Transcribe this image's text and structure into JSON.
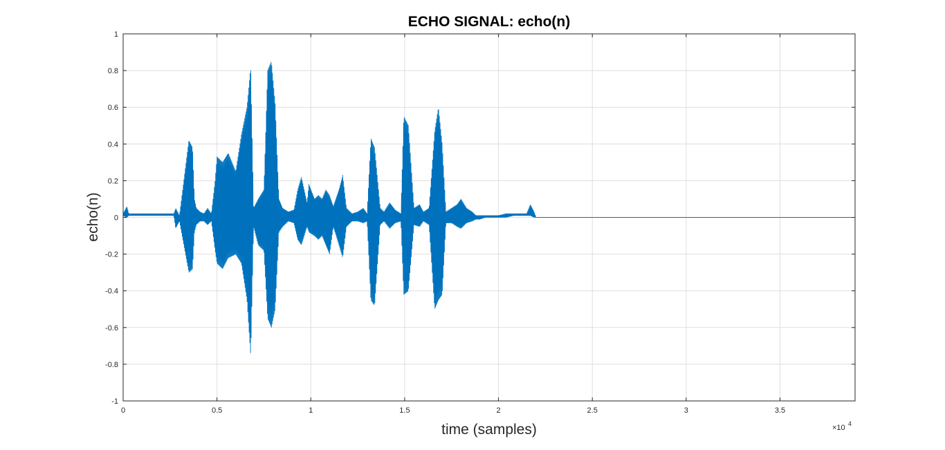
{
  "chart_data": {
    "type": "line",
    "title": "ECHO SIGNAL: echo(n)",
    "xlabel": "time (samples)",
    "ylabel": "echo(n)",
    "xlim": [
      0,
      39000
    ],
    "ylim": [
      -1,
      1
    ],
    "x_tick_values": [
      0,
      5000,
      10000,
      15000,
      20000,
      25000,
      30000,
      35000
    ],
    "x_tick_labels": [
      "0",
      "0.5",
      "1",
      "1.5",
      "2",
      "2.5",
      "3",
      "3.5"
    ],
    "x_exponent_label": "×10",
    "x_exponent_power": "4",
    "y_tick_values": [
      -1,
      -0.8,
      -0.6,
      -0.4,
      -0.2,
      0,
      0.2,
      0.4,
      0.6,
      0.8,
      1
    ],
    "y_tick_labels": [
      "-1",
      "-0.8",
      "-0.6",
      "-0.4",
      "-0.2",
      "0",
      "0.2",
      "0.4",
      "0.6",
      "0.8",
      "1"
    ],
    "grid": true,
    "line_color": "#0072BD",
    "series": [
      {
        "name": "",
        "envelope_x": [
          0,
          200,
          300,
          2700,
          2800,
          3000,
          3500,
          3700,
          3800,
          3900,
          4100,
          4300,
          4500,
          4700,
          4900,
          5000,
          5300,
          5600,
          6000,
          6300,
          6600,
          6800,
          6950,
          7200,
          7500,
          7700,
          7900,
          8100,
          8300,
          8500,
          8800,
          9100,
          9300,
          9500,
          9800,
          9900,
          10200,
          10400,
          10600,
          10800,
          11000,
          11200,
          11500,
          11700,
          11900,
          12200,
          12500,
          12800,
          13000,
          13200,
          13400,
          13700,
          13900,
          14200,
          14500,
          14800,
          14950,
          15200,
          15500,
          15800,
          16000,
          16300,
          16600,
          16800,
          17000,
          17200,
          17500,
          17800,
          18000,
          18300,
          18600,
          18800,
          19000,
          19300,
          19600,
          20000,
          20400,
          20800,
          21200,
          21500,
          21700,
          21900,
          22000,
          25000,
          30000,
          35000,
          39000
        ],
        "envelope_upper": [
          0.02,
          0.06,
          0.02,
          0.02,
          0.05,
          0.01,
          0.42,
          0.38,
          0.1,
          0.05,
          0.03,
          0.02,
          0.05,
          0.02,
          0.2,
          0.33,
          0.3,
          0.35,
          0.25,
          0.45,
          0.6,
          0.82,
          0.05,
          0.1,
          0.15,
          0.8,
          0.85,
          0.62,
          0.1,
          0.05,
          0.03,
          0.04,
          0.15,
          0.22,
          0.08,
          0.18,
          0.1,
          0.12,
          0.1,
          0.15,
          0.12,
          0.06,
          0.15,
          0.23,
          0.05,
          0.02,
          0.03,
          0.05,
          0.02,
          0.43,
          0.38,
          0.05,
          0.03,
          0.08,
          0.04,
          0.02,
          0.55,
          0.5,
          0.05,
          0.07,
          0.03,
          0.05,
          0.47,
          0.6,
          0.4,
          0.03,
          0.05,
          0.07,
          0.1,
          0.05,
          0.03,
          0.01,
          0.01,
          0.01,
          0.01,
          0.01,
          0.02,
          0.02,
          0.02,
          0.02,
          0.07,
          0.03,
          0.0,
          0.0,
          0.0,
          0.0,
          0.0
        ],
        "envelope_lower": [
          0.01,
          0.0,
          0.01,
          0.01,
          -0.06,
          -0.02,
          -0.3,
          -0.28,
          -0.08,
          -0.04,
          -0.02,
          -0.02,
          -0.04,
          -0.02,
          -0.18,
          -0.25,
          -0.28,
          -0.22,
          -0.2,
          -0.25,
          -0.45,
          -0.76,
          -0.05,
          -0.15,
          -0.18,
          -0.55,
          -0.6,
          -0.5,
          -0.08,
          -0.05,
          -0.02,
          -0.03,
          -0.12,
          -0.15,
          -0.05,
          -0.08,
          -0.1,
          -0.12,
          -0.1,
          -0.15,
          -0.2,
          -0.05,
          -0.15,
          -0.22,
          -0.05,
          -0.02,
          -0.02,
          -0.03,
          -0.02,
          -0.45,
          -0.48,
          -0.04,
          -0.02,
          -0.06,
          -0.03,
          -0.02,
          -0.42,
          -0.4,
          -0.04,
          -0.05,
          -0.02,
          -0.04,
          -0.5,
          -0.45,
          -0.42,
          -0.03,
          -0.03,
          -0.05,
          -0.06,
          -0.03,
          -0.02,
          -0.01,
          -0.01,
          0.0,
          0.0,
          0.0,
          0.0,
          0.01,
          0.01,
          0.01,
          0.01,
          0.0,
          0.0,
          0.0,
          0.0,
          0.0,
          0.0
        ]
      }
    ]
  }
}
